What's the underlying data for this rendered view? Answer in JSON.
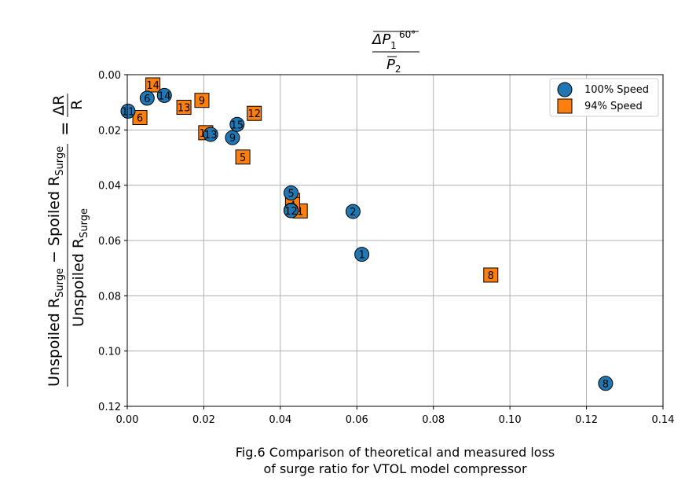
{
  "chart_data": {
    "type": "scatter",
    "xlim": [
      0.0,
      0.14
    ],
    "ylim": [
      0.0,
      0.12
    ],
    "y_inverted": true,
    "x_ticks": [
      0.0,
      0.02,
      0.04,
      0.06,
      0.08,
      0.1,
      0.12,
      0.14
    ],
    "x_tick_labels": [
      "0.00",
      "0.02",
      "0.04",
      "0.06",
      "0.08",
      "0.10",
      "0.12",
      "0.14"
    ],
    "y_ticks": [
      0.0,
      0.02,
      0.04,
      0.06,
      0.08,
      0.1,
      0.12
    ],
    "y_tick_labels": [
      "0.00",
      "0.02",
      "0.04",
      "0.06",
      "0.08",
      "0.10",
      "0.12"
    ],
    "grid": true,
    "legend_position": "top-right",
    "xlabel": {
      "numerator": "ΔP",
      "numerator_sub": "1",
      "numerator_sup": "60°",
      "denominator": "P",
      "denominator_sub": "2"
    },
    "ylabel": {
      "left_numerator_a": "Unspoiled R",
      "left_numerator_a_sub": "Surge",
      "left_numerator_b": " − Spoiled R",
      "left_numerator_b_sub": "Surge",
      "left_denominator": "Unspoiled R",
      "left_denominator_sub": "Surge",
      "equals": "=",
      "right_numerator": "ΔR",
      "right_denominator": "R"
    },
    "series": [
      {
        "name": "100% Speed",
        "marker": "circle",
        "color": "#1f77b4",
        "points": [
          {
            "label": "1",
            "x": 0.0613,
            "y": 0.065
          },
          {
            "label": "2",
            "x": 0.059,
            "y": 0.0495
          },
          {
            "label": "4",
            "x": 0.0428,
            "y": 0.049
          },
          {
            "label": "5",
            "x": 0.0428,
            "y": 0.0428
          },
          {
            "label": "6",
            "x": 0.0052,
            "y": 0.0085
          },
          {
            "label": "8",
            "x": 0.125,
            "y": 0.1117
          },
          {
            "label": "9",
            "x": 0.0275,
            "y": 0.0228
          },
          {
            "label": "11",
            "x": 0.0002,
            "y": 0.0132
          },
          {
            "label": "12",
            "x": 0.0428,
            "y": 0.0492
          },
          {
            "label": "13",
            "x": 0.0218,
            "y": 0.0216
          },
          {
            "label": "14",
            "x": 0.0097,
            "y": 0.0075
          },
          {
            "label": "15",
            "x": 0.0287,
            "y": 0.018
          }
        ]
      },
      {
        "name": "94% Speed",
        "marker": "square",
        "color": "#ff7f0e",
        "points": [
          {
            "label": "1",
            "x": 0.0452,
            "y": 0.0493
          },
          {
            "label": "2",
            "x": 0.0432,
            "y": 0.0455
          },
          {
            "label": "4",
            "x": 0.0432,
            "y": 0.047
          },
          {
            "label": "5",
            "x": 0.0302,
            "y": 0.0298
          },
          {
            "label": "6",
            "x": 0.0033,
            "y": 0.0155
          },
          {
            "label": "8",
            "x": 0.095,
            "y": 0.0725
          },
          {
            "label": "9",
            "x": 0.0195,
            "y": 0.0093
          },
          {
            "label": "12",
            "x": 0.0332,
            "y": 0.014
          },
          {
            "label": "13",
            "x": 0.0148,
            "y": 0.0118
          },
          {
            "label": "14",
            "x": 0.0067,
            "y": 0.0037
          },
          {
            "label": "15",
            "x": 0.0205,
            "y": 0.021
          }
        ]
      }
    ]
  },
  "caption": {
    "line1": "Fig.6 Comparison of theoretical and measured loss",
    "line2": "of surge ratio for VTOL model compressor"
  }
}
